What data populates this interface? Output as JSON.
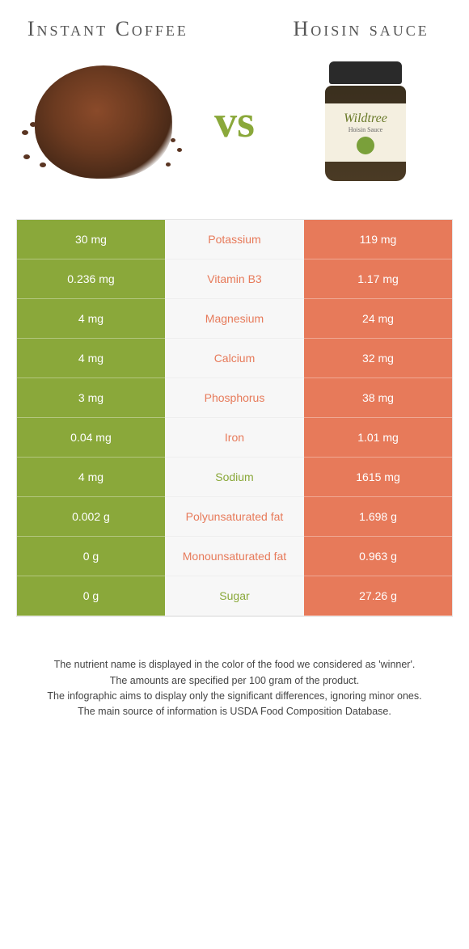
{
  "titles": {
    "left": "Instant Coffee",
    "right": "Hoisin sauce"
  },
  "vs": "vs",
  "jar_label": {
    "brand": "Wildtree",
    "sub": "Hoisin Sauce"
  },
  "colors": {
    "left": "#8aa83a",
    "right": "#e77a5a",
    "mid_bg": "#f7f7f7",
    "text_on_color": "#ffffff"
  },
  "table_type": "comparison",
  "rows": [
    {
      "nutrient": "Potassium",
      "left": "30 mg",
      "right": "119 mg",
      "winner": "right"
    },
    {
      "nutrient": "Vitamin B3",
      "left": "0.236 mg",
      "right": "1.17 mg",
      "winner": "right"
    },
    {
      "nutrient": "Magnesium",
      "left": "4 mg",
      "right": "24 mg",
      "winner": "right"
    },
    {
      "nutrient": "Calcium",
      "left": "4 mg",
      "right": "32 mg",
      "winner": "right"
    },
    {
      "nutrient": "Phosphorus",
      "left": "3 mg",
      "right": "38 mg",
      "winner": "right"
    },
    {
      "nutrient": "Iron",
      "left": "0.04 mg",
      "right": "1.01 mg",
      "winner": "right"
    },
    {
      "nutrient": "Sodium",
      "left": "4 mg",
      "right": "1615 mg",
      "winner": "left"
    },
    {
      "nutrient": "Polyunsaturated fat",
      "left": "0.002 g",
      "right": "1.698 g",
      "winner": "right"
    },
    {
      "nutrient": "Monounsaturated fat",
      "left": "0 g",
      "right": "0.963 g",
      "winner": "right"
    },
    {
      "nutrient": "Sugar",
      "left": "0 g",
      "right": "27.26 g",
      "winner": "left"
    }
  ],
  "footnotes": [
    "The nutrient name is displayed in the color of the food we considered as 'winner'.",
    "The amounts are specified per 100 gram of the product.",
    "The infographic aims to display only the significant differences, ignoring minor ones.",
    "The main source of information is USDA Food Composition Database."
  ]
}
